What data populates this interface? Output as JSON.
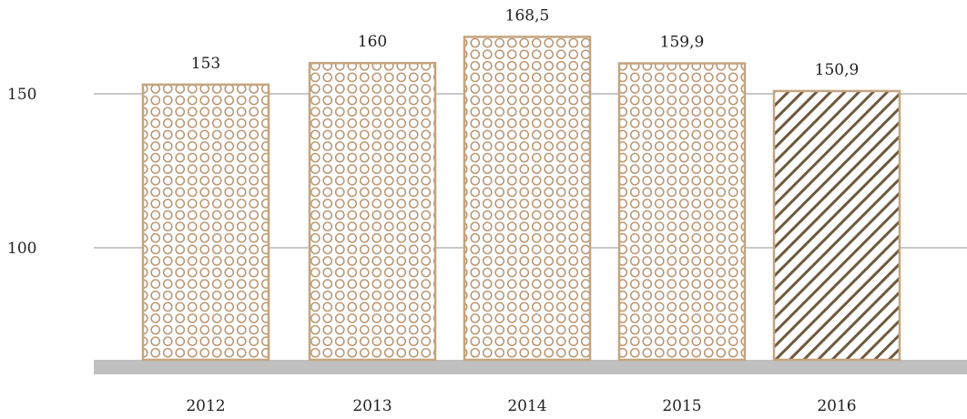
{
  "chart_data": {
    "type": "bar",
    "categories": [
      "2012",
      "2013",
      "2014",
      "2015",
      "2016"
    ],
    "values": [
      153,
      160,
      168.5,
      159.9,
      150.9
    ],
    "value_labels": [
      "153",
      "160",
      "168,5",
      "159,9",
      "150,9"
    ],
    "yticks": [
      {
        "value": 100,
        "label": "100"
      },
      {
        "value": 150,
        "label": "150"
      }
    ],
    "bar_patterns": [
      "circles",
      "circles",
      "circles",
      "circles",
      "diagonal-stripes"
    ],
    "title": "",
    "xlabel": "",
    "ylabel": "",
    "grid": true,
    "colors": {
      "bar_outline": "#c4a57f",
      "circle_pattern": "#b89470",
      "stripe_pattern": "#6e5a3e",
      "gridline": "#c8c8c8",
      "baseline": "#c0c0c0"
    }
  }
}
